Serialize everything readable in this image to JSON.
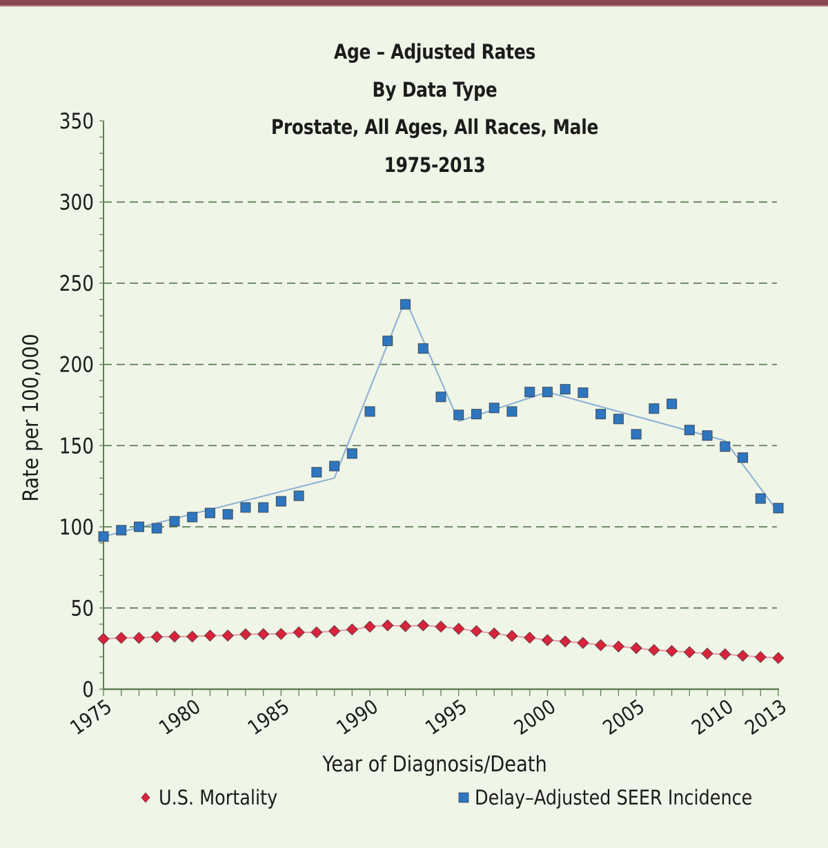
{
  "page": {
    "top_bar_color": "#8b4652",
    "background_color": "#eff5e7"
  },
  "chart_data": {
    "type": "line",
    "title_lines": [
      "Age – Adjusted Rates",
      "By Data Type",
      "Prostate, All Ages, All Races, Male",
      "1975-2013"
    ],
    "xlabel": "Year of Diagnosis/Death",
    "ylabel": "Rate per 100,000",
    "xlim": [
      1975,
      2013
    ],
    "ylim": [
      0,
      350
    ],
    "x_tick_labels": [
      "1975",
      "1980",
      "1985",
      "1990",
      "1995",
      "2000",
      "2005",
      "2010",
      "2013"
    ],
    "x_tick_values": [
      1975,
      1980,
      1985,
      1990,
      1995,
      2000,
      2005,
      2010,
      2013
    ],
    "y_tick_labels": [
      "0",
      "50",
      "100",
      "150",
      "200",
      "250",
      "300",
      "350"
    ],
    "y_tick_values": [
      0,
      50,
      100,
      150,
      200,
      250,
      300,
      350
    ],
    "y_minor_step": 10,
    "grid": "horizontal dashed at major ticks",
    "legend_position": "bottom",
    "x": [
      1975,
      1976,
      1977,
      1978,
      1979,
      1980,
      1981,
      1982,
      1983,
      1984,
      1985,
      1986,
      1987,
      1988,
      1989,
      1990,
      1991,
      1992,
      1993,
      1994,
      1995,
      1996,
      1997,
      1998,
      1999,
      2000,
      2001,
      2002,
      2003,
      2004,
      2005,
      2006,
      2007,
      2008,
      2009,
      2010,
      2011,
      2012,
      2013
    ],
    "series": [
      {
        "name": "U.S. Mortality",
        "marker": "diamond",
        "color": "#d8233b",
        "line_color": "#e79aa5",
        "values": [
          31.0,
          31.6,
          31.6,
          32.2,
          32.4,
          32.4,
          33.0,
          33.0,
          33.8,
          33.9,
          34.0,
          35.0,
          35.0,
          35.8,
          36.8,
          38.5,
          39.3,
          38.8,
          39.3,
          38.5,
          37.2,
          35.8,
          34.3,
          32.8,
          31.7,
          30.2,
          29.4,
          28.5,
          27.1,
          26.3,
          25.3,
          24.1,
          23.5,
          22.8,
          21.9,
          21.5,
          20.6,
          19.8,
          19.2
        ]
      },
      {
        "name": "Delay–Adjusted SEER Incidence",
        "marker": "square",
        "color": "#2e76bf",
        "line_color": "#8aaed3",
        "values": [
          94.0,
          97.9,
          100.0,
          99.1,
          103.4,
          106.0,
          108.5,
          107.7,
          111.9,
          111.9,
          115.7,
          119.1,
          133.6,
          137.4,
          145.1,
          171.0,
          214.5,
          237.0,
          209.8,
          180.0,
          168.9,
          169.4,
          173.2,
          171.0,
          183.0,
          183.0,
          184.7,
          182.6,
          169.4,
          166.4,
          157.0,
          172.8,
          175.7,
          159.6,
          156.2,
          149.4,
          142.6,
          117.4,
          111.5
        ],
        "trend_line": {
          "x": [
            1975,
            1988,
            1992,
            1995,
            2000,
            2010,
            2013
          ],
          "values": [
            94.0,
            130.0,
            240.0,
            165.0,
            183.0,
            153.0,
            109.0
          ]
        }
      }
    ],
    "axis_color": "#5f7f56",
    "grid_color": "#5f7f56"
  }
}
